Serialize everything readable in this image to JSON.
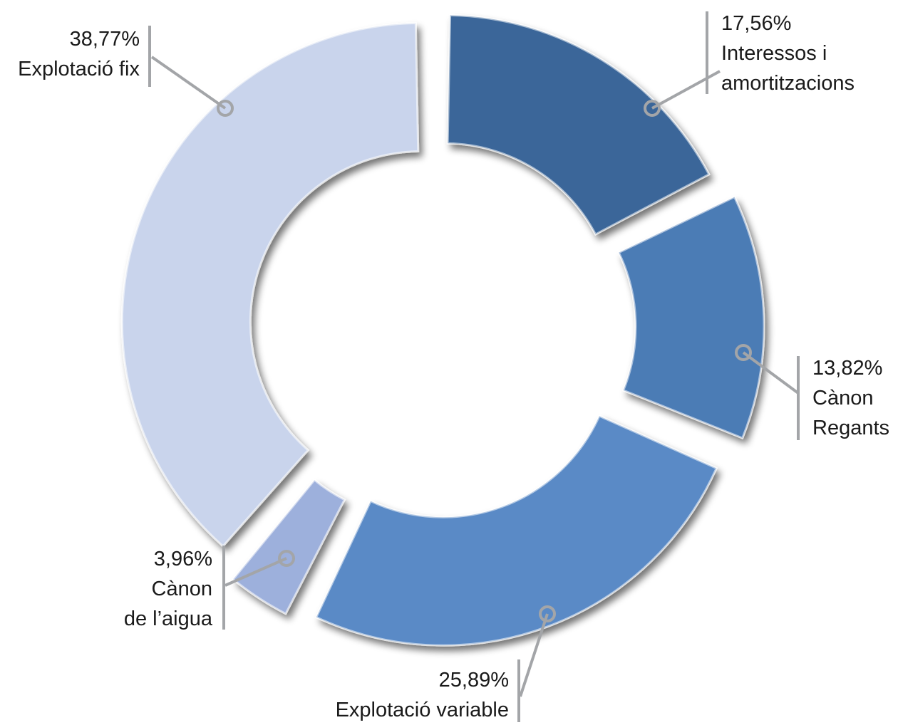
{
  "chart_data": {
    "type": "pie",
    "variant": "donut",
    "slices": [
      {
        "value_label": "17,56%",
        "value": 17.56,
        "label": "Interessos i amortitzacions",
        "label_lines": [
          "Interessos i",
          "amortitzacions"
        ],
        "color": "#3a6699"
      },
      {
        "value_label": "13,82%",
        "value": 13.82,
        "label": "Cànon Regants",
        "label_lines": [
          "Cànon",
          "Regants"
        ],
        "color": "#4c7bb5"
      },
      {
        "value_label": "25,89%",
        "value": 25.89,
        "label": "Explotació variable",
        "label_lines": [
          "Explotació variable"
        ],
        "color": "#5a8ac6"
      },
      {
        "value_label": "3,96%",
        "value": 3.96,
        "label": "Cànon de l'aigua",
        "label_lines": [
          "Cànon",
          "de l’aigua"
        ],
        "color": "#9db0dc"
      },
      {
        "value_label": "38,77%",
        "value": 38.77,
        "label": "Explotació fix",
        "label_lines": [
          "Explotació fix"
        ],
        "color": "#c9d4ec"
      }
    ],
    "title": "",
    "legend": "none"
  }
}
